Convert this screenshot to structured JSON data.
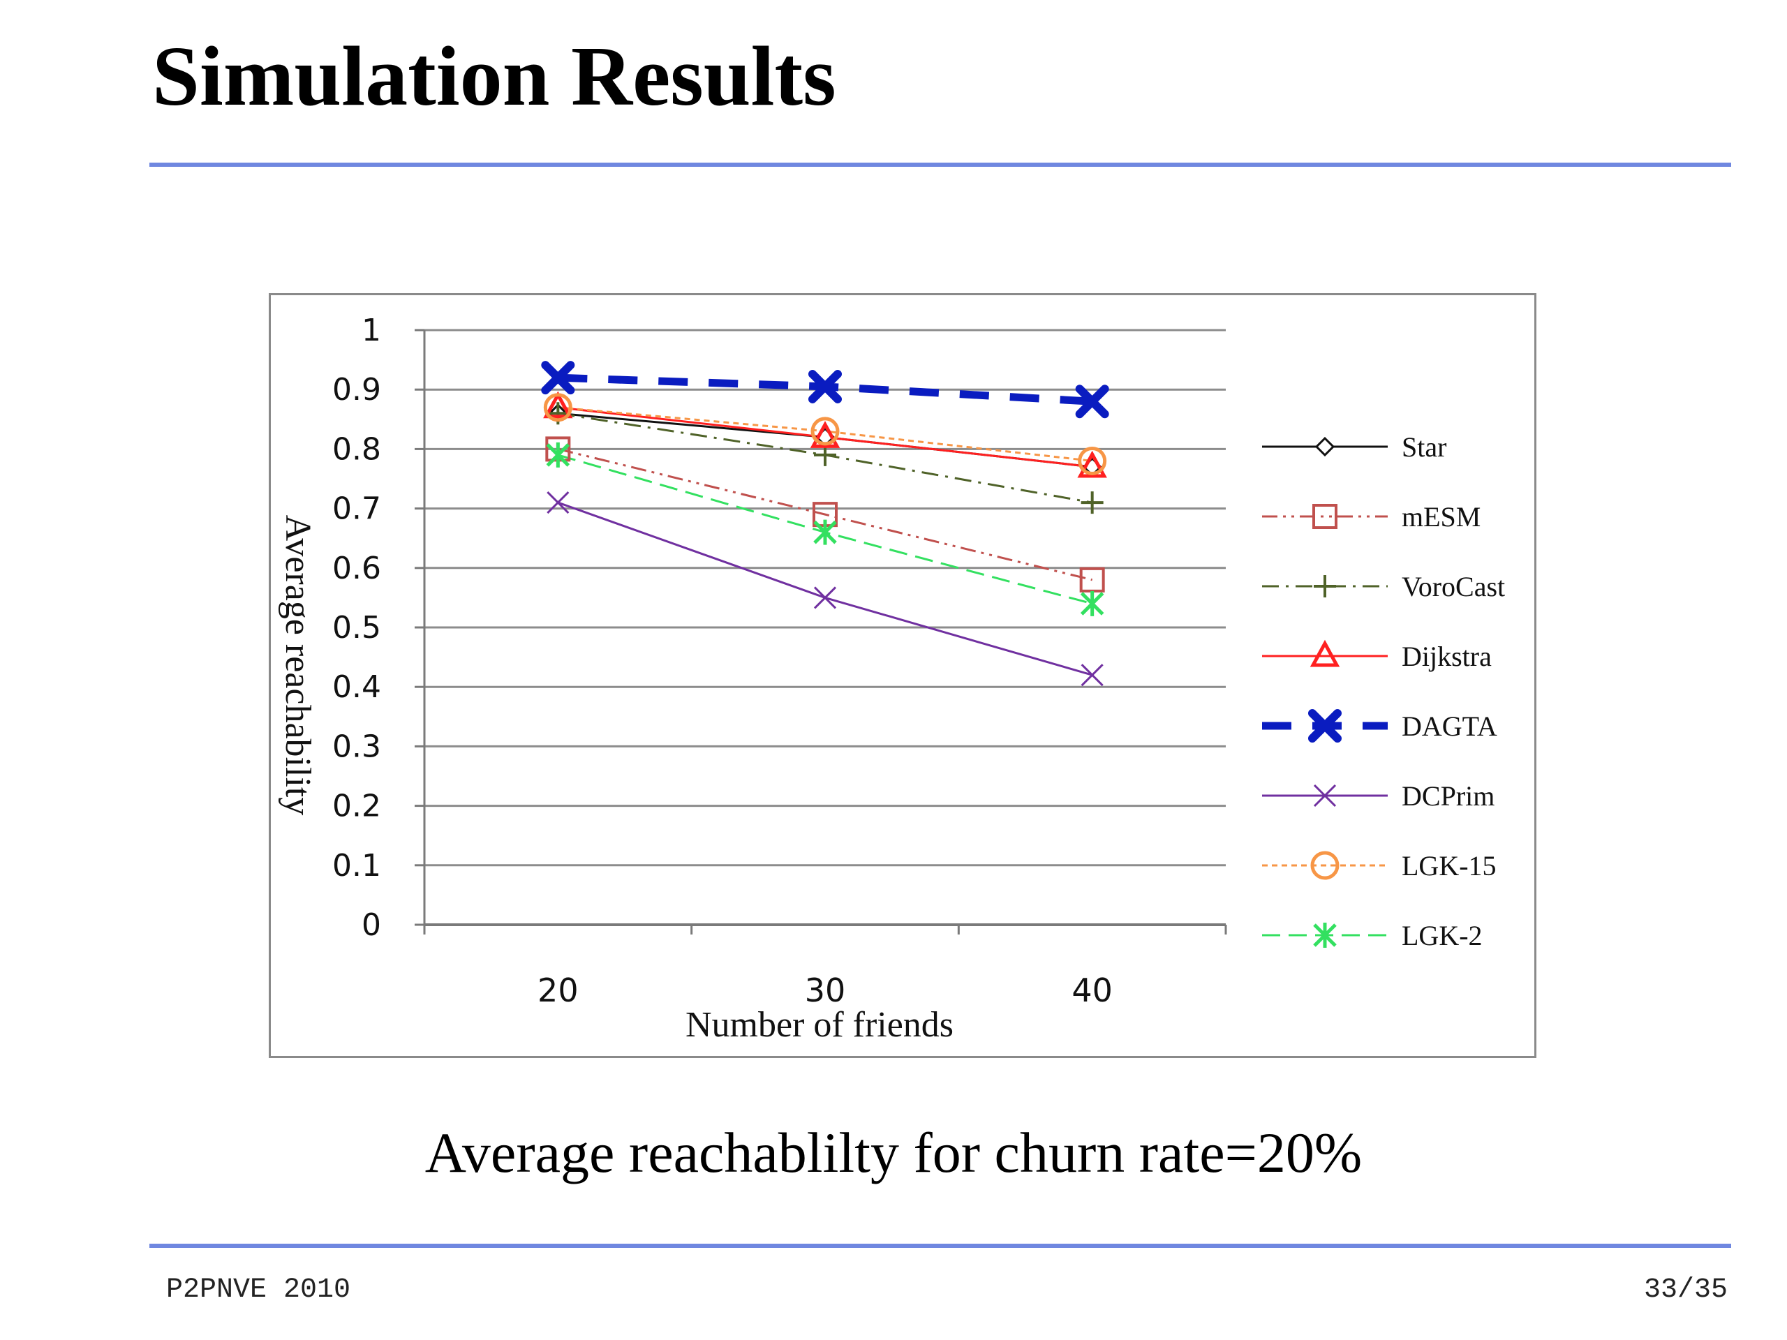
{
  "slide": {
    "title": "Simulation Results",
    "caption": "Average reachablilty for churn rate=20%",
    "footer_left": "P2PNVE 2010",
    "footer_right": "33/35"
  },
  "colors": {
    "rule": "#6f87e0"
  },
  "chart_data": {
    "type": "line",
    "title": "",
    "xlabel": "Number of friends",
    "ylabel": "Average reachability",
    "x": [
      20,
      30,
      40
    ],
    "ylim": [
      0,
      1
    ],
    "yticks": [
      "0",
      "0.1",
      "0.2",
      "0.3",
      "0.4",
      "0.5",
      "0.6",
      "0.7",
      "0.8",
      "0.9",
      "1"
    ],
    "grid": true,
    "legend": "right",
    "series": [
      {
        "name": "Star",
        "values": [
          0.86,
          0.82,
          0.77
        ],
        "color": "#111111",
        "dash": "",
        "width": 3,
        "marker": "diamond"
      },
      {
        "name": "mESM",
        "values": [
          0.8,
          0.69,
          0.58
        ],
        "color": "#c0504d",
        "dash": "22 8 4 8 4 8",
        "width": 3,
        "marker": "square"
      },
      {
        "name": "VoroCast",
        "values": [
          0.86,
          0.79,
          0.71
        ],
        "color": "#4f6228",
        "dash": "24 10 4 10",
        "width": 3,
        "marker": "plus"
      },
      {
        "name": "Dijkstra",
        "values": [
          0.87,
          0.82,
          0.77
        ],
        "color": "#ff2020",
        "dash": "",
        "width": 3,
        "marker": "triangle"
      },
      {
        "name": "DAGTA",
        "values": [
          0.92,
          0.905,
          0.88
        ],
        "color": "#0a1cc0",
        "dash": "42 30",
        "width": 11,
        "marker": "x-bold"
      },
      {
        "name": "DCPrim",
        "values": [
          0.71,
          0.55,
          0.42
        ],
        "color": "#7030a0",
        "dash": "",
        "width": 3,
        "marker": "x"
      },
      {
        "name": "LGK-15",
        "values": [
          0.87,
          0.83,
          0.78
        ],
        "color": "#f79646",
        "dash": "8 6",
        "width": 3,
        "marker": "circle"
      },
      {
        "name": "LGK-2",
        "values": [
          0.79,
          0.66,
          0.54
        ],
        "color": "#33e060",
        "dash": "26 12",
        "width": 3,
        "marker": "asterisk"
      }
    ]
  }
}
